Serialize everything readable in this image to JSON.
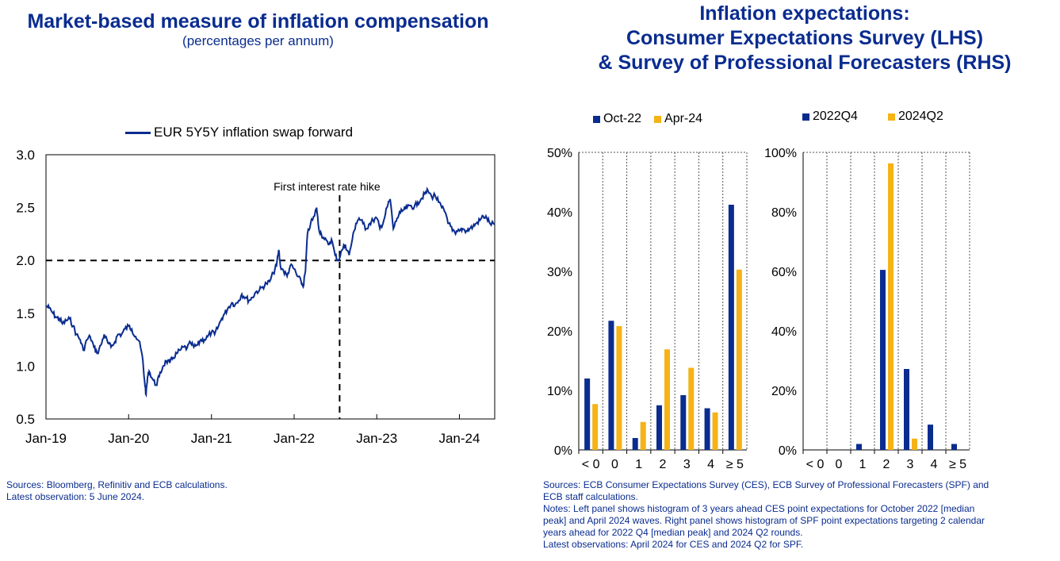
{
  "left": {
    "title": "Market-based measure of inflation compensation",
    "subtitle": "(percentages per annum)",
    "notes": [
      "Sources: Bloomberg, Refinitiv and ECB calculations.",
      "Latest observation: 5 June 2024."
    ]
  },
  "right": {
    "title_lines": [
      "Inflation expectations:",
      "Consumer Expectations Survey (LHS)",
      "& Survey of Professional Forecasters (RHS)"
    ],
    "notes": [
      "Sources: ECB Consumer Expectations Survey (CES), ECB Survey of Professional Forecasters (SPF) and",
      "ECB staff calculations.",
      "Notes: Left panel shows histogram of 3 years ahead CES point expectations for October 2022 [median",
      "peak] and April 2024 waves. Right panel shows histogram of SPF point expectations targeting 2 calendar",
      "years ahead for 2022 Q4 [median peak] and 2024 Q2 rounds.",
      "Latest observations: April 2024 for CES and 2024 Q2 for SPF."
    ]
  },
  "colors": {
    "navy": "#0a2c8f",
    "gold": "#f5b316",
    "text": "#0a2c8f"
  },
  "chart_data": [
    {
      "type": "line",
      "legend": [
        "EUR 5Y5Y inflation swap forward"
      ],
      "yticks": [
        "0.5",
        "1.0",
        "1.5",
        "2.0",
        "2.5",
        "3.0"
      ],
      "xticks": [
        "Jan-19",
        "Jan-20",
        "Jan-21",
        "Jan-22",
        "Jan-23",
        "Jan-24"
      ],
      "ylim": [
        0.5,
        3.0
      ],
      "xlim": [
        "2019-01-01",
        "2024-06-05"
      ],
      "reference_line": 2.0,
      "annotation": {
        "label": "First interest rate hike",
        "date": "2022-07-21"
      },
      "series": [
        {
          "name": "EUR 5Y5Y inflation swap forward",
          "points": [
            [
              "2019-01-01",
              1.57
            ],
            [
              "2019-01-15",
              1.55
            ],
            [
              "2019-02-01",
              1.5
            ],
            [
              "2019-02-15",
              1.46
            ],
            [
              "2019-03-01",
              1.45
            ],
            [
              "2019-03-15",
              1.4
            ],
            [
              "2019-04-01",
              1.43
            ],
            [
              "2019-04-15",
              1.45
            ],
            [
              "2019-05-01",
              1.38
            ],
            [
              "2019-05-15",
              1.3
            ],
            [
              "2019-06-01",
              1.25
            ],
            [
              "2019-06-15",
              1.15
            ],
            [
              "2019-07-01",
              1.25
            ],
            [
              "2019-07-15",
              1.28
            ],
            [
              "2019-08-01",
              1.18
            ],
            [
              "2019-08-15",
              1.12
            ],
            [
              "2019-09-01",
              1.2
            ],
            [
              "2019-09-15",
              1.3
            ],
            [
              "2019-10-01",
              1.22
            ],
            [
              "2019-10-15",
              1.18
            ],
            [
              "2019-11-01",
              1.23
            ],
            [
              "2019-11-15",
              1.3
            ],
            [
              "2019-12-01",
              1.3
            ],
            [
              "2019-12-15",
              1.35
            ],
            [
              "2020-01-01",
              1.38
            ],
            [
              "2020-01-15",
              1.35
            ],
            [
              "2020-02-01",
              1.28
            ],
            [
              "2020-02-15",
              1.24
            ],
            [
              "2020-03-01",
              1.1
            ],
            [
              "2020-03-12",
              0.85
            ],
            [
              "2020-03-18",
              0.73
            ],
            [
              "2020-03-25",
              0.9
            ],
            [
              "2020-04-01",
              0.95
            ],
            [
              "2020-04-15",
              0.88
            ],
            [
              "2020-05-01",
              0.82
            ],
            [
              "2020-05-15",
              0.9
            ],
            [
              "2020-06-01",
              1.0
            ],
            [
              "2020-06-15",
              1.05
            ],
            [
              "2020-07-01",
              1.03
            ],
            [
              "2020-07-15",
              1.08
            ],
            [
              "2020-08-01",
              1.12
            ],
            [
              "2020-08-15",
              1.15
            ],
            [
              "2020-09-01",
              1.18
            ],
            [
              "2020-09-15",
              1.17
            ],
            [
              "2020-10-01",
              1.22
            ],
            [
              "2020-10-15",
              1.18
            ],
            [
              "2020-11-01",
              1.2
            ],
            [
              "2020-11-15",
              1.25
            ],
            [
              "2020-12-01",
              1.25
            ],
            [
              "2020-12-15",
              1.28
            ],
            [
              "2021-01-01",
              1.32
            ],
            [
              "2021-01-15",
              1.3
            ],
            [
              "2021-02-01",
              1.38
            ],
            [
              "2021-02-15",
              1.45
            ],
            [
              "2021-03-01",
              1.5
            ],
            [
              "2021-03-15",
              1.55
            ],
            [
              "2021-04-01",
              1.6
            ],
            [
              "2021-04-15",
              1.58
            ],
            [
              "2021-05-01",
              1.62
            ],
            [
              "2021-05-15",
              1.68
            ],
            [
              "2021-06-01",
              1.65
            ],
            [
              "2021-06-15",
              1.62
            ],
            [
              "2021-07-01",
              1.65
            ],
            [
              "2021-07-15",
              1.7
            ],
            [
              "2021-08-01",
              1.72
            ],
            [
              "2021-08-15",
              1.75
            ],
            [
              "2021-09-01",
              1.78
            ],
            [
              "2021-09-15",
              1.8
            ],
            [
              "2021-10-01",
              1.88
            ],
            [
              "2021-10-15",
              1.95
            ],
            [
              "2021-10-25",
              2.1
            ],
            [
              "2021-11-01",
              1.95
            ],
            [
              "2021-11-15",
              1.9
            ],
            [
              "2021-12-01",
              1.85
            ],
            [
              "2021-12-15",
              1.95
            ],
            [
              "2022-01-01",
              1.92
            ],
            [
              "2022-01-15",
              1.85
            ],
            [
              "2022-02-01",
              1.8
            ],
            [
              "2022-02-10",
              1.75
            ],
            [
              "2022-02-20",
              1.9
            ],
            [
              "2022-03-01",
              2.25
            ],
            [
              "2022-03-15",
              2.35
            ],
            [
              "2022-04-01",
              2.42
            ],
            [
              "2022-04-10",
              2.5
            ],
            [
              "2022-04-20",
              2.3
            ],
            [
              "2022-05-01",
              2.25
            ],
            [
              "2022-05-15",
              2.2
            ],
            [
              "2022-06-01",
              2.15
            ],
            [
              "2022-06-15",
              2.2
            ],
            [
              "2022-07-01",
              2.05
            ],
            [
              "2022-07-15",
              2.0
            ],
            [
              "2022-08-01",
              2.1
            ],
            [
              "2022-08-15",
              2.15
            ],
            [
              "2022-09-01",
              2.05
            ],
            [
              "2022-09-15",
              2.2
            ],
            [
              "2022-10-01",
              2.35
            ],
            [
              "2022-10-15",
              2.4
            ],
            [
              "2022-11-01",
              2.35
            ],
            [
              "2022-11-15",
              2.3
            ],
            [
              "2022-12-01",
              2.35
            ],
            [
              "2022-12-15",
              2.38
            ],
            [
              "2023-01-01",
              2.4
            ],
            [
              "2023-01-15",
              2.3
            ],
            [
              "2023-02-01",
              2.38
            ],
            [
              "2023-02-15",
              2.5
            ],
            [
              "2023-03-01",
              2.58
            ],
            [
              "2023-03-15",
              2.3
            ],
            [
              "2023-04-01",
              2.4
            ],
            [
              "2023-04-15",
              2.45
            ],
            [
              "2023-05-01",
              2.48
            ],
            [
              "2023-05-15",
              2.5
            ],
            [
              "2023-06-01",
              2.52
            ],
            [
              "2023-06-15",
              2.5
            ],
            [
              "2023-07-01",
              2.55
            ],
            [
              "2023-07-15",
              2.58
            ],
            [
              "2023-08-01",
              2.63
            ],
            [
              "2023-08-15",
              2.66
            ],
            [
              "2023-09-01",
              2.6
            ],
            [
              "2023-09-15",
              2.62
            ],
            [
              "2023-10-01",
              2.55
            ],
            [
              "2023-10-15",
              2.5
            ],
            [
              "2023-11-01",
              2.45
            ],
            [
              "2023-11-15",
              2.35
            ],
            [
              "2023-12-01",
              2.28
            ],
            [
              "2023-12-15",
              2.25
            ],
            [
              "2024-01-01",
              2.28
            ],
            [
              "2024-01-15",
              2.3
            ],
            [
              "2024-02-01",
              2.28
            ],
            [
              "2024-02-15",
              2.3
            ],
            [
              "2024-03-01",
              2.32
            ],
            [
              "2024-03-15",
              2.35
            ],
            [
              "2024-04-01",
              2.38
            ],
            [
              "2024-04-15",
              2.42
            ],
            [
              "2024-05-01",
              2.4
            ],
            [
              "2024-05-15",
              2.35
            ],
            [
              "2024-06-05",
              2.34
            ]
          ]
        }
      ]
    },
    {
      "type": "bar",
      "categories": [
        "< 0",
        "0",
        "1",
        "2",
        "3",
        "4",
        "≥ 5"
      ],
      "yticks": [
        "0%",
        "10%",
        "20%",
        "30%",
        "40%",
        "50%"
      ],
      "ylim": [
        0,
        50
      ],
      "grid": true,
      "legend_placement": "top-left",
      "series": [
        {
          "name": "Oct-22",
          "values": [
            12,
            21.7,
            2,
            7.5,
            9.2,
            7,
            41.2
          ]
        },
        {
          "name": "Apr-24",
          "values": [
            7.7,
            20.8,
            4.7,
            16.9,
            13.8,
            6.3,
            30.3
          ]
        }
      ]
    },
    {
      "type": "bar",
      "categories": [
        "< 0",
        "0",
        "1",
        "2",
        "3",
        "4",
        "≥ 5"
      ],
      "yticks": [
        "0%",
        "20%",
        "40%",
        "60%",
        "80%",
        "100%"
      ],
      "ylim": [
        0,
        100
      ],
      "grid": true,
      "legend_placement": "top-left",
      "series": [
        {
          "name": "2022Q4",
          "values": [
            0,
            0,
            2,
            60.5,
            27.2,
            8.5,
            2
          ]
        },
        {
          "name": "2024Q2",
          "values": [
            0,
            0,
            0,
            96.3,
            3.8,
            0,
            0
          ]
        }
      ]
    }
  ]
}
